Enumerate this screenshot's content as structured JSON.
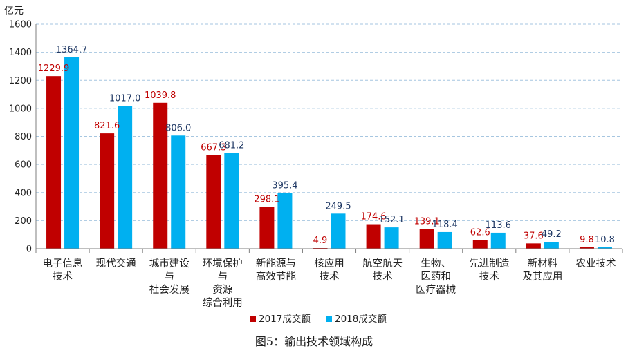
{
  "chart_data": {
    "type": "bar",
    "ylabel": "亿元",
    "ylim": [
      0,
      1600
    ],
    "yticks": [
      0,
      200,
      400,
      600,
      800,
      1000,
      1200,
      1400,
      1600
    ],
    "ytick_labels": [
      "0",
      "200",
      "400",
      "600",
      "800",
      "1000",
      "1200",
      "1400",
      "1600"
    ],
    "grid": true,
    "legend_position": "bottom",
    "categories": [
      [
        "电子信息",
        "技术"
      ],
      [
        "现代交通"
      ],
      [
        "城市建设",
        "与",
        "社会发展"
      ],
      [
        "环境保护",
        "与",
        "资源",
        "综合利用"
      ],
      [
        "新能源与",
        "高效节能"
      ],
      [
        "核应用",
        "技术"
      ],
      [
        "航空航天",
        "技术"
      ],
      [
        "生物、",
        "医药和",
        "医疗器械"
      ],
      [
        "先进制造",
        "技术"
      ],
      [
        "新材料",
        "及其应用"
      ],
      [
        "农业技术"
      ]
    ],
    "series": [
      {
        "name": "2017成交额",
        "color": "#C00000",
        "label_color": "#C00000",
        "values": [
          1229.9,
          821.6,
          1039.8,
          667.3,
          298.1,
          4.9,
          174.6,
          139.1,
          62.6,
          37.6,
          9.8
        ],
        "labels": [
          "1229.9",
          "821.6",
          "1039.8",
          "667.3",
          "298.1",
          "4.9",
          "174.6",
          "139.1",
          "62.6",
          "37.6",
          "9.8"
        ]
      },
      {
        "name": "2018成交额",
        "color": "#00B0F0",
        "label_color": "#1F3864",
        "values": [
          1364.7,
          1017.0,
          806.0,
          681.2,
          395.4,
          249.5,
          152.1,
          118.4,
          113.6,
          49.2,
          10.8
        ],
        "labels": [
          "1364.7",
          "1017.0",
          "806.0",
          "681.2",
          "395.4",
          "249.5",
          "152.1",
          "118.4",
          "113.6",
          "49.2",
          "10.8"
        ]
      }
    ],
    "caption": "图5：输出技术领域构成"
  }
}
